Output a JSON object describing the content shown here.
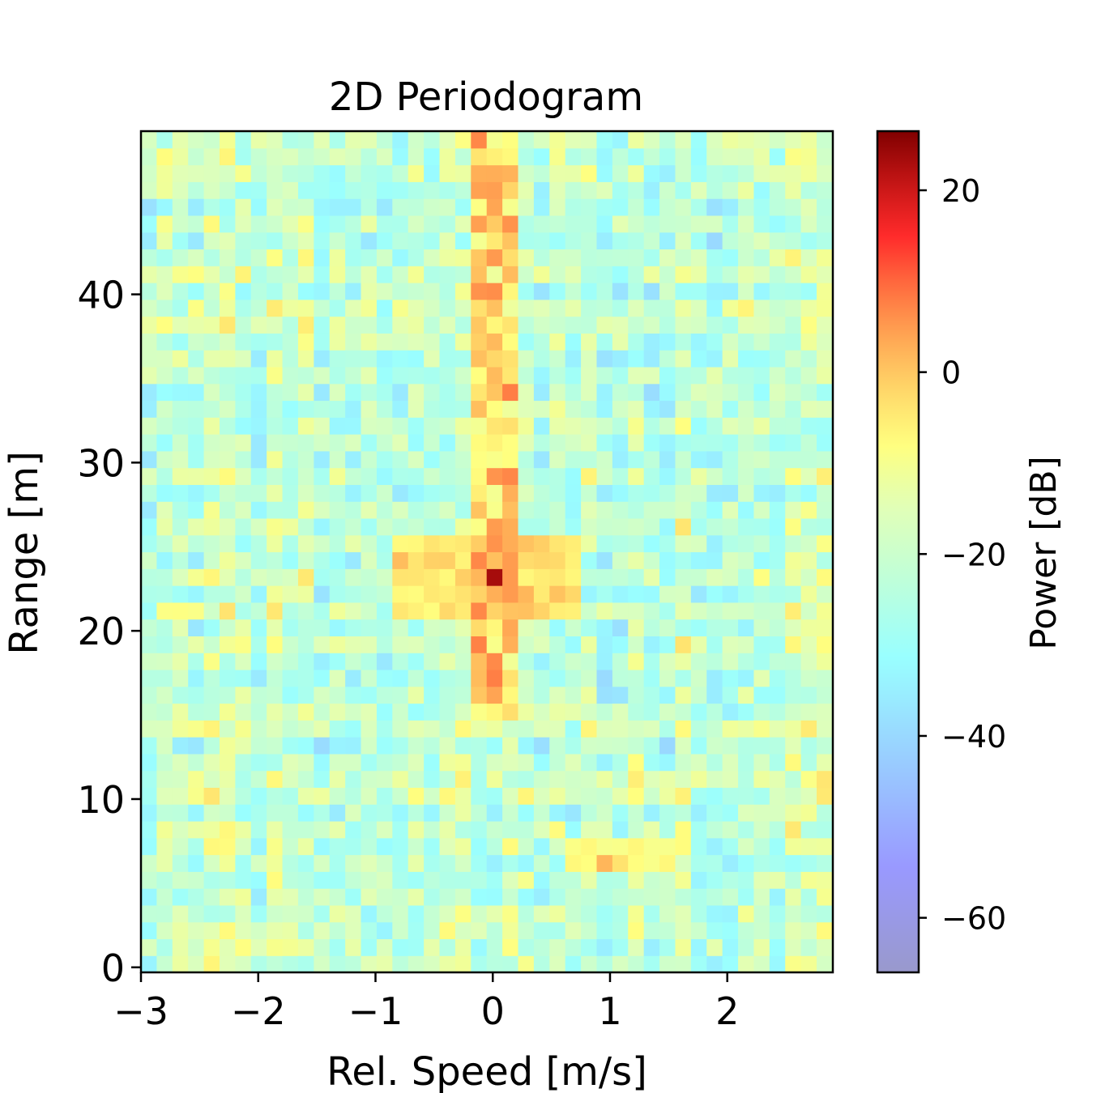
{
  "chart_data": {
    "type": "heatmap",
    "title": "2D Periodogram",
    "xlabel": "Rel. Speed [m/s]",
    "ylabel": "Range [m]",
    "xlim": [
      -3.0,
      2.9
    ],
    "ylim": [
      -0.3,
      49.7
    ],
    "x_ticks": [
      -3,
      -2,
      -1,
      0,
      1,
      2
    ],
    "x_tick_labels": [
      "−3",
      "−2",
      "−1",
      "0",
      "1",
      "2"
    ],
    "y_ticks": [
      0,
      10,
      20,
      30,
      40
    ],
    "y_tick_labels": [
      "0",
      "10",
      "20",
      "30",
      "40"
    ],
    "colorbar": {
      "label": "Power [dB]",
      "range": [
        -66,
        26.5
      ],
      "ticks": [
        20,
        0,
        -20,
        -40,
        -60
      ],
      "tick_labels": [
        "20",
        "0",
        "−20",
        "−40",
        "−60"
      ],
      "colormap": "jet (alpha-blended with white)"
    },
    "grid": false,
    "cells": {
      "nx": 44,
      "ny": 50,
      "dx_m_s": 0.134,
      "dy_m": 1.0
    },
    "background_level_db": [
      -35,
      -8
    ],
    "features": [
      {
        "name": "vertical streak",
        "x": 0.0,
        "y_range": [
          15,
          49.7
        ],
        "peak_db": 8
      },
      {
        "name": "main target",
        "x": 0.0,
        "y": 23,
        "peak_db": 26
      },
      {
        "name": "main target sidelobes",
        "x_range": [
          -0.8,
          0.7
        ],
        "y_range": [
          20.5,
          25.5
        ],
        "peak_db": 2
      },
      {
        "name": "second target",
        "x": 1.0,
        "y": 6.5,
        "peak_db": 10
      }
    ]
  }
}
